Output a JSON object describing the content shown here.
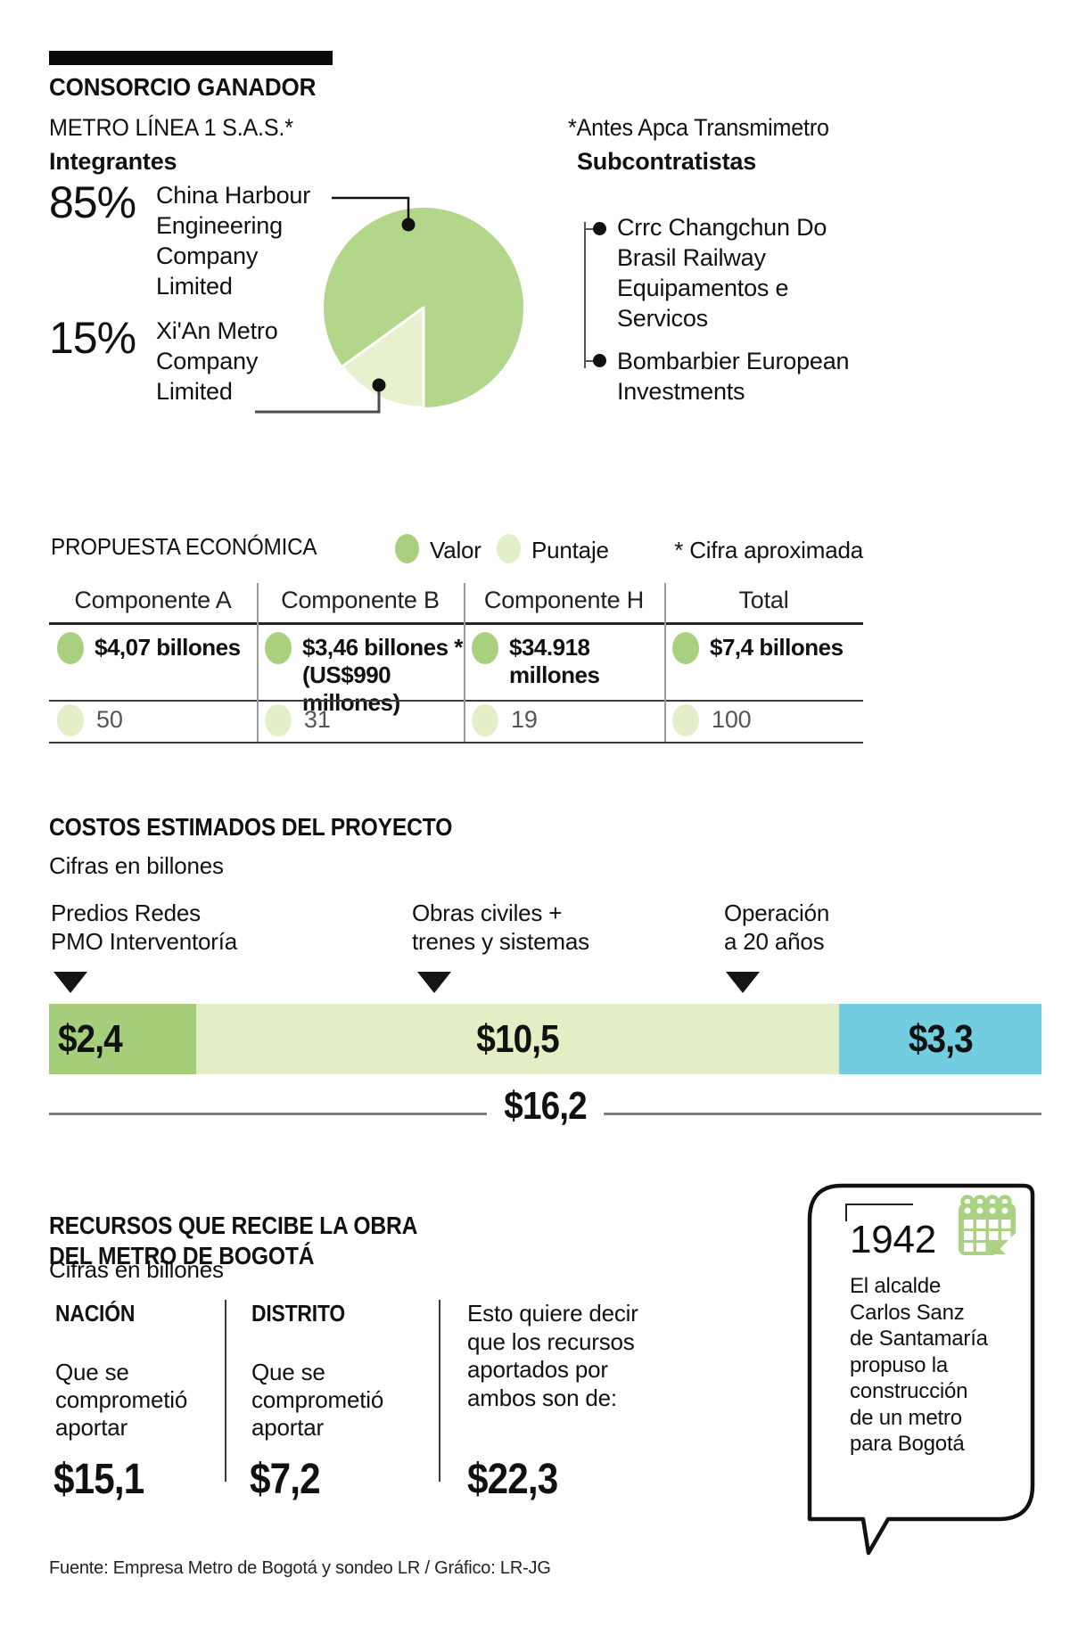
{
  "header": {
    "title": "CONSORCIO GANADOR",
    "subtitle": "METRO LÍNEA 1 S.A.S.*",
    "note": "*Antes Apca Transmimetro",
    "members_label": "Integrantes",
    "subcontractors_label": "Subcontratistas"
  },
  "members": [
    {
      "pct": "85%",
      "name": "China Harbour\nEngineering\nCompany\nLimited"
    },
    {
      "pct": "15%",
      "name": "Xi'An Metro\nCompany\nLimited"
    }
  ],
  "subcontractors": [
    "Crrc Changchun Do\nBrasil Railway\nEquipamentos e\nServicos",
    "Bombarbier European\nInvestments"
  ],
  "proposal": {
    "title": "PROPUESTA ECONÓMICA",
    "legend": [
      {
        "label": "Valor",
        "color": "#a9d07f"
      },
      {
        "label": "Puntaje",
        "color": "#e3efc8"
      }
    ],
    "note": "* Cifra aproximada",
    "columns": [
      "Componente A",
      "Componente B",
      "Componente H",
      "Total"
    ],
    "values": [
      "$4,07 billones",
      "$3,46 billones *\n(US$990 millones)",
      "$34.918 millones",
      "$7,4 billones"
    ],
    "points": [
      "50",
      "31",
      "19",
      "100"
    ]
  },
  "costs": {
    "title": "COSTOS ESTIMADOS DEL PROYECTO",
    "subtitle": "Cifras en billones",
    "total_num": 16.2,
    "segments": [
      {
        "label": "Predios Redes\nPMO Interventoría",
        "value": "$2,4",
        "num": 2.4,
        "color": "#a6ce7a"
      },
      {
        "label": "Obras civiles +\ntrenes y sistemas",
        "value": "$10,5",
        "num": 10.5,
        "color": "#e3eec5"
      },
      {
        "label": "Operación\na 20 años",
        "value": "$3,3",
        "num": 3.3,
        "color": "#72cde0"
      }
    ],
    "total": "$16,2"
  },
  "resources": {
    "title": "RECURSOS QUE RECIBE LA OBRA\nDEL METRO DE BOGOTÁ",
    "subtitle": "Cifras en billones",
    "columns": [
      {
        "name": "NACIÓN",
        "desc": "Que se\ncomprometió\naportar",
        "value": "$15,1"
      },
      {
        "name": "DISTRITO",
        "desc": "Que se\ncomprometió\naportar",
        "value": "$7,2"
      }
    ],
    "combined_desc": "Esto quiere decir\nque los recursos\naportados por\nambos son de:",
    "combined_value": "$22,3"
  },
  "callout": {
    "year": "1942",
    "text": "El alcalde\nCarlos Sanz\nde Santamaría\npropuso la\nconstrucción\nde un metro\npara Bogotá"
  },
  "footer": "Fuente: Empresa Metro de Bogotá y sondeo LR / Gráfico: LR-JG",
  "colors": {
    "pie_green": "#b2d68a",
    "pie_light": "#e7f0cf",
    "bar_green": "#a6ce7a",
    "bar_light": "#e3eec5",
    "bar_blue": "#72cde0",
    "dot_green": "#a9d07f",
    "dot_light": "#e3efc8",
    "calendar_green": "#a9d285"
  },
  "chart_data": [
    {
      "type": "pie",
      "title": "Integrantes — Metro Línea 1 S.A.S.",
      "labels": [
        "China Harbour Engineering Company Limited",
        "Xi'An Metro Company Limited"
      ],
      "values": [
        85,
        15
      ],
      "unit": "%",
      "colors": [
        "#b2d68a",
        "#e7f0cf"
      ],
      "legend_position": "left"
    },
    {
      "type": "table",
      "title": "Propuesta Económica",
      "columns": [
        "Componente A",
        "Componente B",
        "Componente H",
        "Total"
      ],
      "row_series": [
        "Valor",
        "Puntaje"
      ],
      "rows": [
        [
          "$4,07 billones",
          "$3,46 billones * (US$990 millones)",
          "$34.918 millones",
          "$7,4 billones"
        ],
        [
          50,
          31,
          19,
          100
        ]
      ]
    },
    {
      "type": "bar",
      "subtype": "stacked-horizontal",
      "title": "Costos estimados del proyecto",
      "ylabel": "Cifras en billones",
      "categories": [
        "Predios Redes PMO Interventoría",
        "Obras civiles + trenes y sistemas",
        "Operación a 20 años"
      ],
      "values": [
        2.4,
        10.5,
        3.3
      ],
      "total": 16.2,
      "colors": [
        "#a6ce7a",
        "#e3eec5",
        "#72cde0"
      ]
    },
    {
      "type": "bar",
      "title": "Recursos que recibe la obra del Metro de Bogotá (billones)",
      "categories": [
        "Nación",
        "Distrito",
        "Ambos"
      ],
      "values": [
        15.1,
        7.2,
        22.3
      ]
    }
  ]
}
